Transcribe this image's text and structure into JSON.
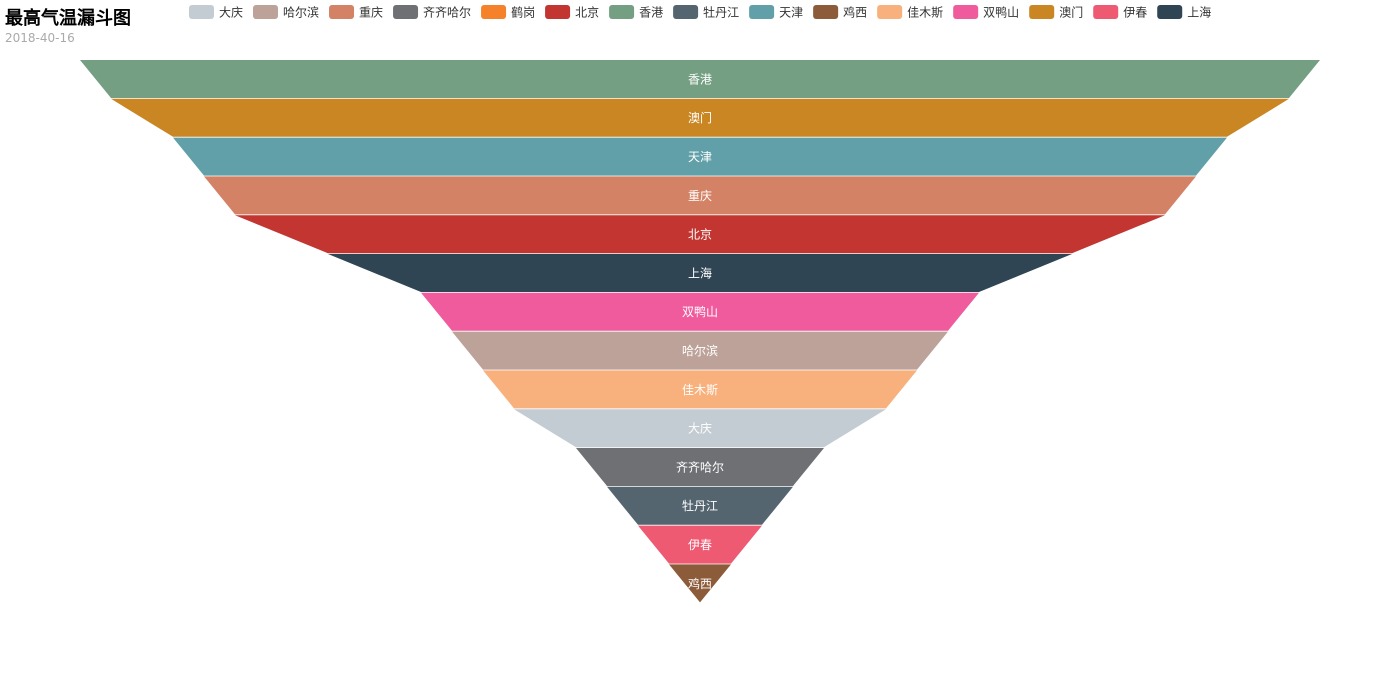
{
  "chart_data": {
    "type": "funnel",
    "title": "最高气温漏斗图",
    "subtitle": "2018-40-16",
    "legend_position": "top",
    "categories": [
      "大庆",
      "哈尔滨",
      "重庆",
      "齐齐哈尔",
      "鹤岗",
      "北京",
      "香港",
      "牡丹江",
      "天津",
      "鸡西",
      "佳木斯",
      "双鸭山",
      "澳门",
      "伊春",
      "上海"
    ],
    "colors": [
      "#c4ccd3",
      "#bda29a",
      "#d48265",
      "#6e7074",
      "#f5812a",
      "#c23531",
      "#749f83",
      "#546570",
      "#61a0a8",
      "#8c5b3a",
      "#f8b17c",
      "#ef5b9c",
      "#ca8622",
      "#ef5a73",
      "#2f4554"
    ],
    "values": [
      30,
      40,
      80,
      20,
      0,
      75,
      100,
      15,
      85,
      5,
      35,
      45,
      95,
      10,
      60
    ],
    "sort": "descending"
  }
}
